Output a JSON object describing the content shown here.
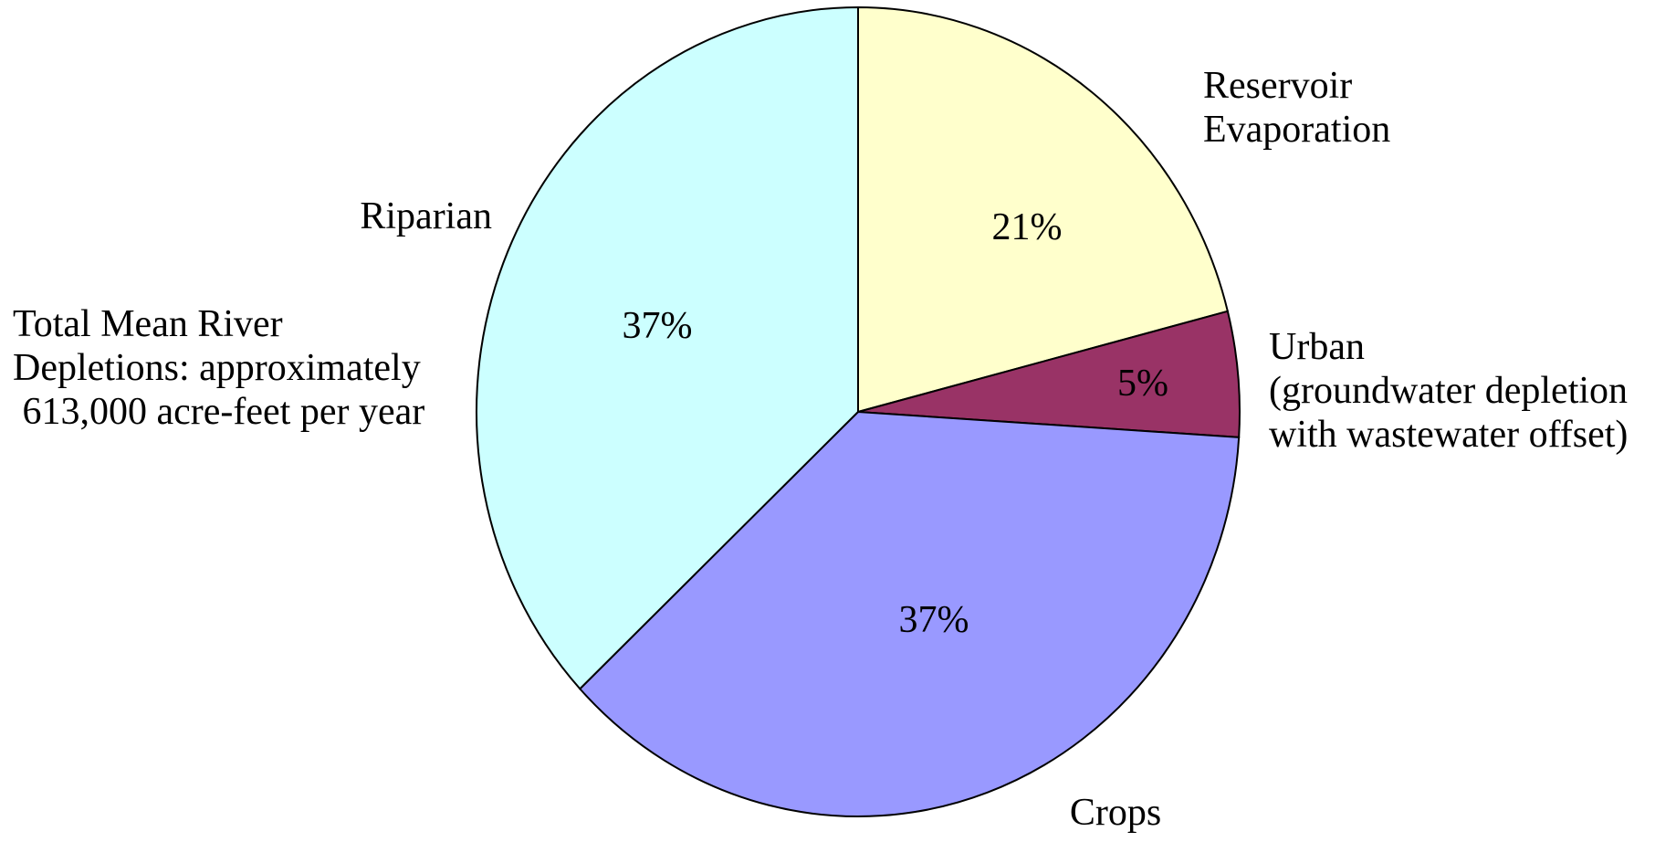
{
  "chart_data": {
    "type": "pie",
    "note": "Total Mean River Depletions: approximately 613,000 acre-feet per year",
    "note_lines": [
      "Total Mean River",
      "Depletions: approximately",
      " 613,000 acre-feet per year"
    ],
    "slices": [
      {
        "id": "reservoir",
        "label": "Reservoir Evaporation",
        "label_lines": [
          "Reservoir",
          "Evaporation"
        ],
        "value": 21,
        "value_label": "21%",
        "color": "#FFFFCC"
      },
      {
        "id": "urban",
        "label": "Urban (groundwater depletion with wastewater offset)",
        "label_lines": [
          "Urban",
          "(groundwater depletion",
          "with wastewater offset)"
        ],
        "value": 5,
        "value_label": "5%",
        "color": "#993366"
      },
      {
        "id": "crops",
        "label": "Crops",
        "label_lines": [
          "Crops"
        ],
        "value": 37,
        "value_label": "37%",
        "color": "#9999FF"
      },
      {
        "id": "riparian",
        "label": "Riparian",
        "label_lines": [
          "Riparian"
        ],
        "value": 37,
        "value_label": "37%",
        "color": "#CCFFFF"
      }
    ]
  }
}
